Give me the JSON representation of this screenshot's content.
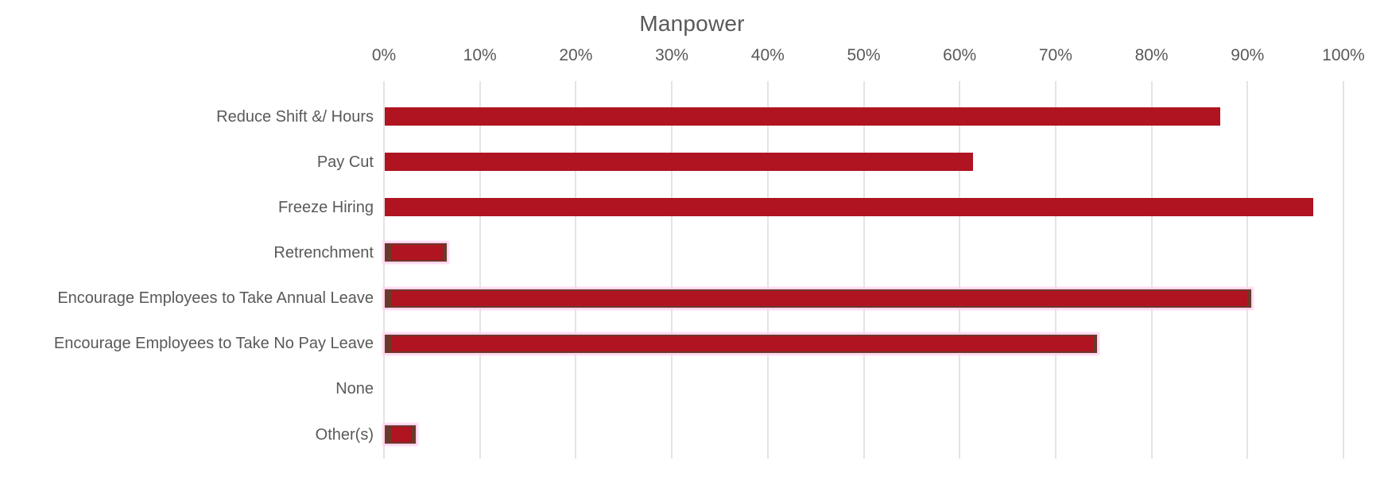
{
  "chart_data": {
    "type": "bar",
    "orientation": "horizontal",
    "title": "Manpower",
    "categories": [
      "Reduce Shift &/ Hours",
      "Pay Cut",
      "Freeze Hiring",
      "Retrenchment",
      "Encourage Employees to Take Annual Leave",
      "Encourage Employees to Take No Pay Leave",
      "None",
      "Other(s)"
    ],
    "values": [
      87.1,
      61.3,
      96.8,
      6.5,
      90.3,
      74.2,
      0,
      3.2
    ],
    "unit": "%",
    "highlighted": [
      false,
      false,
      false,
      true,
      true,
      true,
      false,
      true
    ],
    "xlabel": "",
    "ylabel": "",
    "xlim": [
      0,
      100
    ],
    "x_tick_labels": [
      "0%",
      "10%",
      "20%",
      "30%",
      "40%",
      "50%",
      "60%",
      "70%",
      "80%",
      "90%",
      "100%"
    ],
    "grid": "vertical-only",
    "legend": "none",
    "colors": {
      "bar": "#B01421",
      "highlight_border": "#6B392C",
      "highlight_glow": "#FFD3EE",
      "gridline": "#E4E4E4",
      "text": "#595959",
      "background": "#FFFFFF"
    }
  }
}
